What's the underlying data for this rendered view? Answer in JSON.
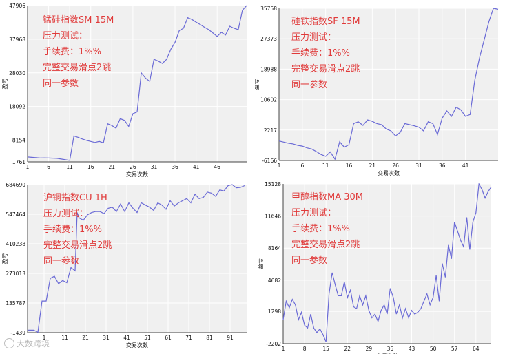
{
  "colors": {
    "line": "#6a6ad6",
    "text": "#e03a3a",
    "plot_bg": "#f0f0f0",
    "grid": "#ffffff"
  },
  "annotation_lines_common": [
    "压力测试：",
    "手续费：1%%",
    "完整交易滑点2跳",
    "同一参数"
  ],
  "watermark": "大数跨境",
  "chart_data": [
    {
      "type": "line",
      "title": "锰硅指数SM 15M",
      "xlabel": "交易次数",
      "ylabel": "盈亏",
      "yticks": [
        1761,
        8154,
        18092,
        28030,
        37968,
        47906
      ],
      "xticks": [
        1,
        6,
        11,
        16,
        21,
        26,
        31,
        36,
        41,
        46
      ],
      "xlim": [
        1,
        53
      ],
      "ylim": [
        1761,
        47906
      ],
      "x": [
        1,
        2,
        3,
        4,
        5,
        6,
        7,
        8,
        9,
        10,
        11,
        12,
        13,
        14,
        15,
        16,
        17,
        18,
        19,
        20,
        21,
        22,
        23,
        24,
        25,
        26,
        27,
        28,
        29,
        30,
        31,
        32,
        33,
        34,
        35,
        36,
        37,
        38,
        39,
        40,
        41,
        42,
        43,
        44,
        45,
        46,
        47,
        48,
        49,
        50,
        51,
        52,
        53
      ],
      "y": [
        3200,
        3100,
        3000,
        2900,
        2950,
        2900,
        2850,
        2800,
        2600,
        2400,
        2200,
        9400,
        9000,
        8500,
        8100,
        7800,
        7500,
        7800,
        7400,
        13000,
        12500,
        11700,
        14500,
        14000,
        12200,
        16000,
        16500,
        28000,
        26500,
        25500,
        32000,
        31500,
        30800,
        32000,
        35000,
        37000,
        40500,
        41200,
        44300,
        43800,
        43000,
        42300,
        41500,
        40800,
        39800,
        38800,
        40000,
        39200,
        41800,
        41200,
        40800,
        46500,
        47900
      ]
    },
    {
      "type": "line",
      "title": "硅铁指数SF 15M",
      "xlabel": "交易次数",
      "ylabel": "盈亏",
      "yticks": [
        -6166,
        2217,
        10602,
        18988,
        27373,
        35758
      ],
      "xticks": [
        1,
        6,
        11,
        16,
        21,
        26,
        31,
        36,
        41
      ],
      "xlim": [
        1,
        48
      ],
      "ylim": [
        -6166,
        35758
      ],
      "x": [
        1,
        2,
        3,
        4,
        5,
        6,
        7,
        8,
        9,
        10,
        11,
        12,
        13,
        14,
        15,
        16,
        17,
        18,
        19,
        20,
        21,
        22,
        23,
        24,
        25,
        26,
        27,
        28,
        29,
        30,
        31,
        32,
        33,
        34,
        35,
        36,
        37,
        38,
        39,
        40,
        41,
        42,
        43,
        44,
        45,
        46,
        47,
        48
      ],
      "y": [
        -800,
        -1100,
        -1400,
        -1600,
        -2000,
        -2200,
        -2700,
        -3000,
        -3700,
        -4500,
        -5000,
        -3800,
        -5800,
        -1000,
        -2500,
        -1800,
        4000,
        4500,
        3500,
        5000,
        4600,
        4000,
        3700,
        2500,
        2000,
        600,
        1600,
        4000,
        3700,
        3400,
        3000,
        2000,
        4500,
        4000,
        1000,
        5500,
        7500,
        6000,
        8500,
        7800,
        6000,
        6500,
        16000,
        22000,
        27000,
        32000,
        35758,
        35500
      ]
    },
    {
      "type": "line",
      "title": "沪铜指数CU 1H",
      "xlabel": "交易次数",
      "ylabel": "盈亏",
      "yticks": [
        -1439,
        135787,
        273013,
        410238,
        547464,
        684690
      ],
      "xticks": [
        1,
        11,
        21,
        31,
        41,
        51,
        61,
        71,
        81,
        91
      ],
      "xlim": [
        -7,
        99
      ],
      "ylim": [
        -1439,
        684690
      ],
      "x": [
        -7,
        -4,
        -2,
        0,
        2,
        4,
        6,
        8,
        10,
        12,
        14,
        16,
        17,
        18,
        20,
        22,
        24,
        26,
        28,
        30,
        32,
        34,
        36,
        38,
        40,
        42,
        44,
        46,
        48,
        50,
        52,
        54,
        56,
        58,
        60,
        62,
        64,
        66,
        68,
        70,
        72,
        74,
        76,
        78,
        80,
        82,
        84,
        86,
        88,
        90,
        92,
        94,
        96,
        98
      ],
      "y": [
        10000,
        10000,
        0,
        145000,
        145000,
        250000,
        260000,
        225000,
        240000,
        230000,
        300000,
        285000,
        555000,
        530000,
        520000,
        545000,
        555000,
        560000,
        560000,
        550000,
        575000,
        580000,
        560000,
        595000,
        560000,
        600000,
        575000,
        555000,
        600000,
        590000,
        580000,
        565000,
        600000,
        590000,
        570000,
        610000,
        585000,
        600000,
        610000,
        620000,
        600000,
        640000,
        620000,
        625000,
        650000,
        645000,
        630000,
        660000,
        655000,
        680000,
        684690,
        670000,
        672000,
        680000
      ]
    },
    {
      "type": "line",
      "title": "甲醇指数MA 30M",
      "xlabel": "交易次数",
      "ylabel": "盈亏",
      "yticks": [
        -2202,
        1298,
        4682,
        8164,
        11646,
        15128
      ],
      "xticks": [
        1,
        8,
        15,
        22,
        29,
        36,
        43,
        50,
        57,
        64
      ],
      "xlim": [
        1,
        69
      ],
      "ylim": [
        -2202,
        15128
      ],
      "x": [
        1,
        2,
        3,
        4,
        5,
        6,
        7,
        8,
        9,
        10,
        11,
        12,
        13,
        14,
        15,
        16,
        17,
        18,
        19,
        20,
        21,
        22,
        23,
        24,
        25,
        26,
        27,
        28,
        29,
        30,
        31,
        32,
        33,
        34,
        35,
        36,
        37,
        38,
        39,
        40,
        41,
        42,
        43,
        44,
        45,
        46,
        47,
        48,
        49,
        50,
        51,
        52,
        53,
        54,
        55,
        56,
        57,
        58,
        59,
        60,
        61,
        62,
        63,
        64,
        65,
        66,
        67,
        68,
        69
      ],
      "y": [
        400,
        2400,
        1700,
        2600,
        2000,
        400,
        1200,
        -200,
        -500,
        1000,
        -500,
        -1000,
        -600,
        -1200,
        -2000,
        3200,
        5500,
        4200,
        3000,
        3000,
        4500,
        2800,
        3600,
        1800,
        1600,
        3000,
        2000,
        3000,
        1400,
        600,
        1000,
        200,
        1400,
        2000,
        1000,
        3800,
        2800,
        1000,
        2000,
        600,
        1600,
        600,
        1400,
        1000,
        1200,
        1600,
        2400,
        3200,
        2000,
        2800,
        5200,
        2400,
        6500,
        5000,
        8500,
        7000,
        11000,
        10000,
        9000,
        8300,
        11500,
        8000,
        11000,
        12000,
        15128,
        14500,
        13600,
        14300,
        14800
      ]
    }
  ]
}
